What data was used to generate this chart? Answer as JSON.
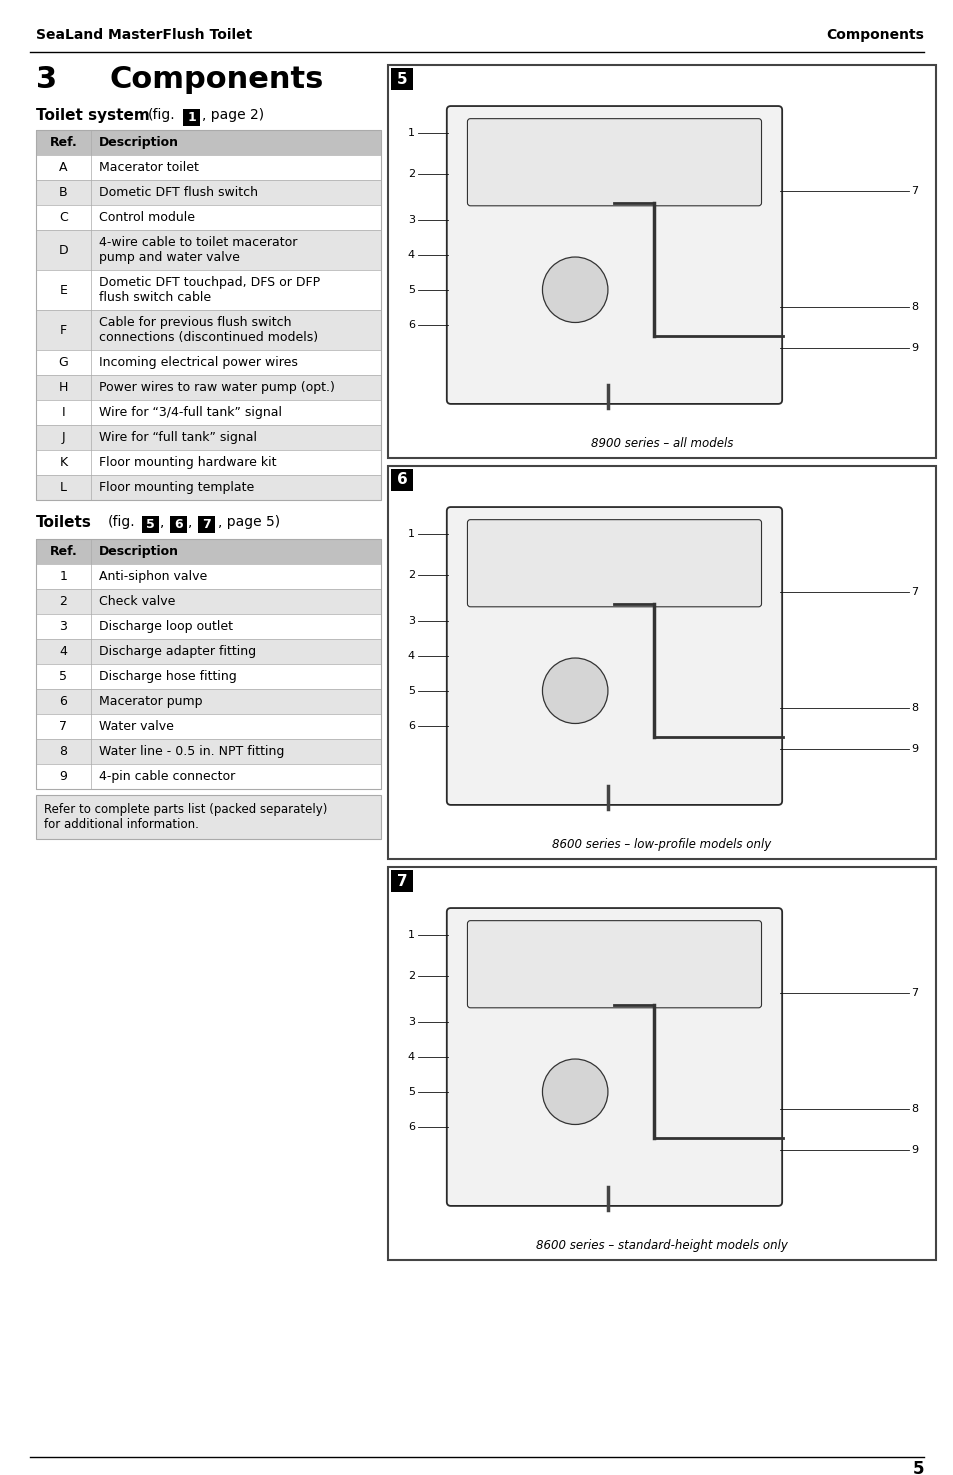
{
  "header_left": "SeaLand MasterFlush Toilet",
  "header_right": "Components",
  "section_number": "3",
  "section_title": "Components",
  "toilet_system_label": "Toilet system",
  "toilet_system_fig_num": "1",
  "toilet_system_page": ", page 2)",
  "toilet_rows": [
    {
      "ref": "Ref.",
      "desc": "Description",
      "header": true
    },
    {
      "ref": "A",
      "desc": "Macerator toilet",
      "shaded": false
    },
    {
      "ref": "B",
      "desc": "Dometic DFT flush switch",
      "shaded": true
    },
    {
      "ref": "C",
      "desc": "Control module",
      "shaded": false
    },
    {
      "ref": "D",
      "desc": "4-wire cable to toilet macerator\npump and water valve",
      "shaded": true
    },
    {
      "ref": "E",
      "desc": "Dometic DFT touchpad, DFS or DFP\nflush switch cable",
      "shaded": false
    },
    {
      "ref": "F",
      "desc": "Cable for previous flush switch\nconnections (discontinued models)",
      "shaded": true
    },
    {
      "ref": "G",
      "desc": "Incoming electrical power wires",
      "shaded": false
    },
    {
      "ref": "H",
      "desc": "Power wires to raw water pump (opt.)",
      "shaded": true
    },
    {
      "ref": "I",
      "desc": "Wire for “3/4-full tank” signal",
      "shaded": false
    },
    {
      "ref": "J",
      "desc": "Wire for “full tank” signal",
      "shaded": true
    },
    {
      "ref": "K",
      "desc": "Floor mounting hardware kit",
      "shaded": false
    },
    {
      "ref": "L",
      "desc": "Floor mounting template",
      "shaded": true
    }
  ],
  "toilets_label": "Toilets",
  "toilets_fig_nums": [
    "5",
    "6",
    "7"
  ],
  "toilets_page": ", page 5)",
  "toilet_ref_rows": [
    {
      "ref": "Ref.",
      "desc": "Description",
      "header": true
    },
    {
      "ref": "1",
      "desc": "Anti-siphon valve",
      "shaded": false
    },
    {
      "ref": "2",
      "desc": "Check valve",
      "shaded": true
    },
    {
      "ref": "3",
      "desc": "Discharge loop outlet",
      "shaded": false
    },
    {
      "ref": "4",
      "desc": "Discharge adapter fitting",
      "shaded": true
    },
    {
      "ref": "5",
      "desc": "Discharge hose fitting",
      "shaded": false
    },
    {
      "ref": "6",
      "desc": "Macerator pump",
      "shaded": true
    },
    {
      "ref": "7",
      "desc": "Water valve",
      "shaded": false
    },
    {
      "ref": "8",
      "desc": "Water line - 0.5 in. NPT fitting",
      "shaded": true
    },
    {
      "ref": "9",
      "desc": "4-pin cable connector",
      "shaded": false
    }
  ],
  "footnote": "Refer to complete parts list (packed separately)\nfor additional information.",
  "fig5_label": "5",
  "fig5_caption": "8900 series – all models",
  "fig6_label": "6",
  "fig6_caption": "8600 series – low-profile models only",
  "fig7_label": "7",
  "fig7_caption": "8600 series – standard-height models only",
  "page_number": "5",
  "bg_color": "#ffffff",
  "table_header_bg": "#c0c0c0",
  "row_shaded_bg": "#e4e4e4",
  "row_unshaded_bg": "#ffffff",
  "footnote_bg": "#e4e4e4"
}
